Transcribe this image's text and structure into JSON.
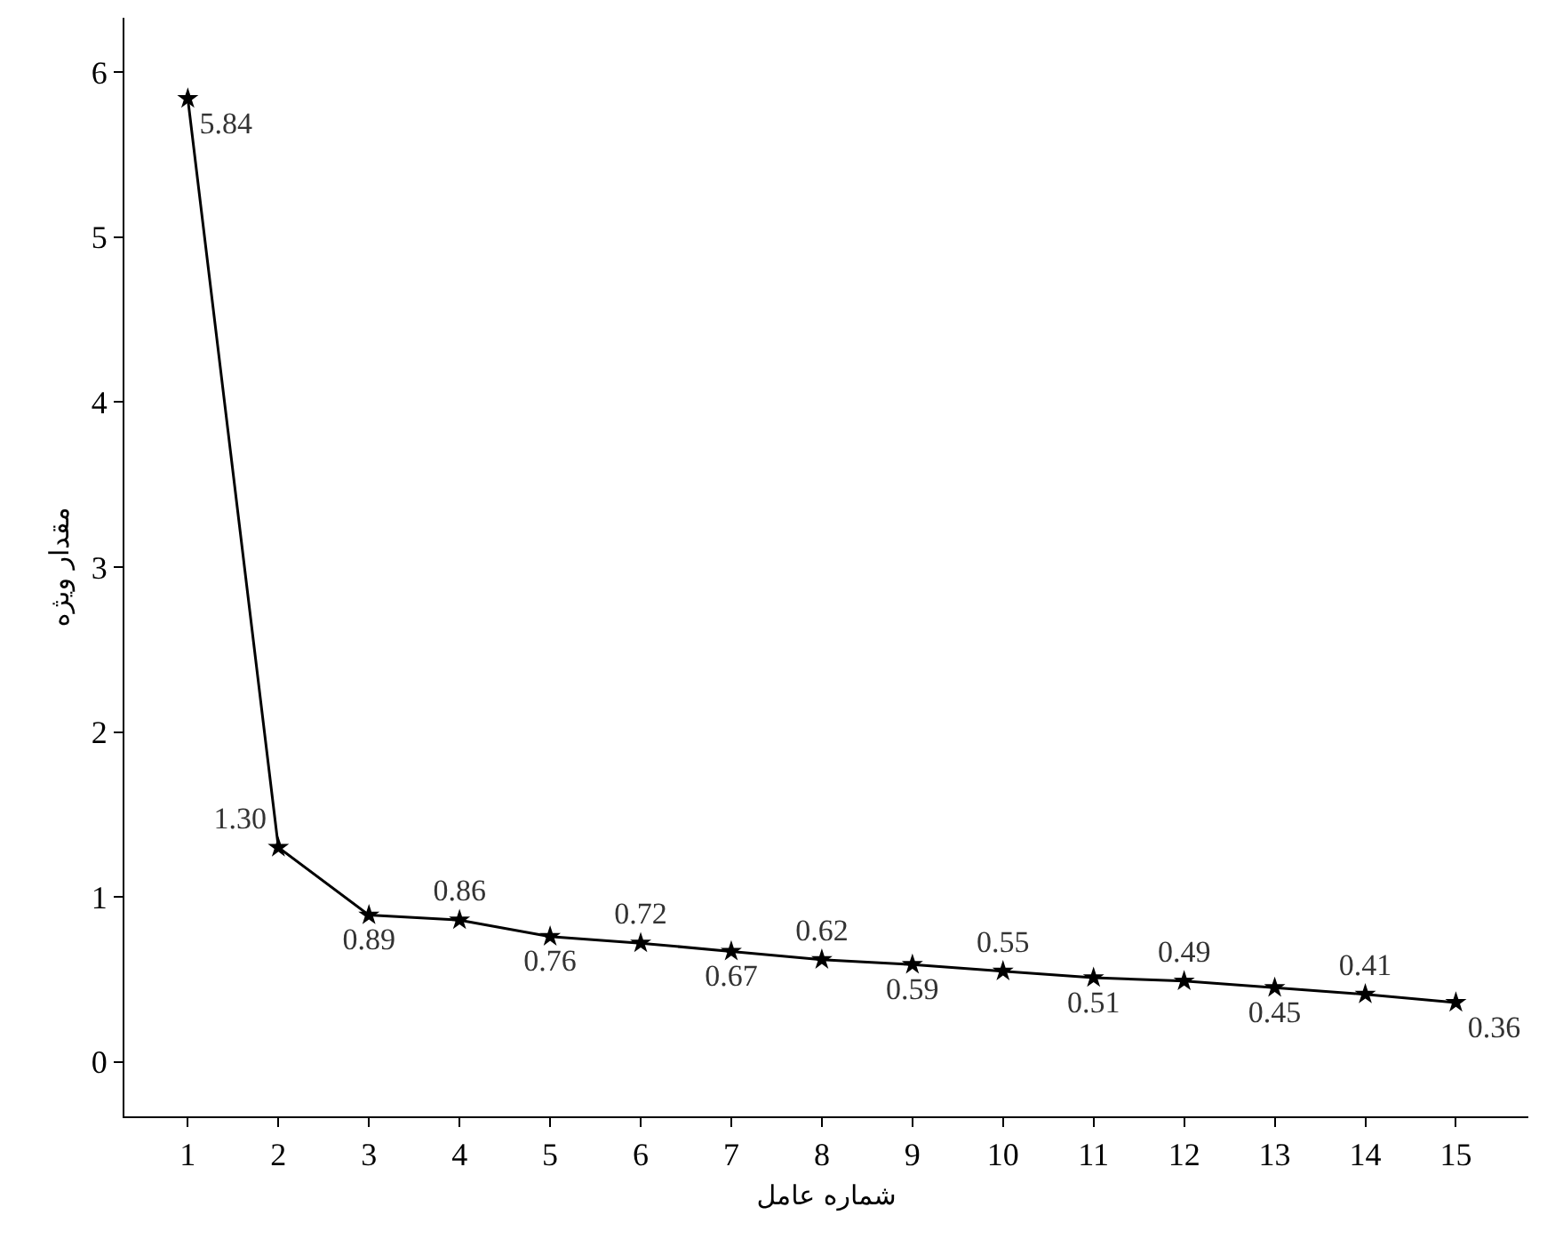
{
  "chart_data": {
    "type": "line",
    "xlabel": "شماره عامل",
    "ylabel": "مقدار ویژه",
    "x": [
      1,
      2,
      3,
      4,
      5,
      6,
      7,
      8,
      9,
      10,
      11,
      12,
      13,
      14,
      15
    ],
    "series": [
      {
        "color": "#000000",
        "values": [
          5.84,
          1.3,
          0.89,
          0.86,
          0.76,
          0.72,
          0.67,
          0.62,
          0.59,
          0.55,
          0.51,
          0.49,
          0.45,
          0.41,
          0.36
        ]
      }
    ],
    "value_labels": [
      "5.84",
      "1.30",
      "0.89",
      "0.86",
      "0.76",
      "0.72",
      "0.67",
      "0.62",
      "0.59",
      "0.55",
      "0.51",
      "0.49",
      "0.45",
      "0.41",
      "0.36"
    ],
    "xlim": [
      0.3,
      15.8
    ],
    "xticks": [
      1,
      2,
      3,
      4,
      5,
      6,
      7,
      8,
      9,
      10,
      11,
      12,
      13,
      14,
      15
    ],
    "ylim": [
      -0.33,
      6.33
    ],
    "yticks": [
      0,
      1,
      2,
      3,
      4,
      5,
      6
    ],
    "marker": "star",
    "line_style": "solid"
  }
}
